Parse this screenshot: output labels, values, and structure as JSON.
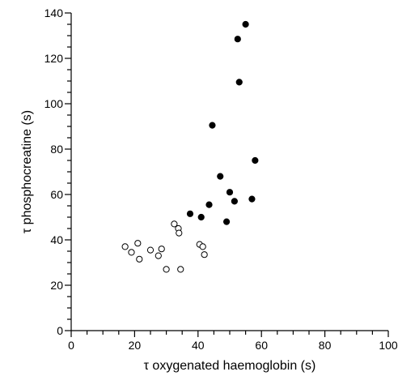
{
  "chart_data": {
    "type": "scatter",
    "xlabel": "τ oxygenated haemoglobin (s)",
    "ylabel": "τ phosphocreatine (s)",
    "xlim": [
      0,
      100
    ],
    "ylim": [
      0,
      140
    ],
    "x_major_ticks": [
      0,
      20,
      40,
      60,
      80,
      100
    ],
    "y_major_ticks": [
      0,
      20,
      40,
      60,
      80,
      100,
      120,
      140
    ],
    "grid": false,
    "legend": "none",
    "series": [
      {
        "marker": "open-circle",
        "color": "#000000",
        "x": [
          17,
          19,
          21,
          21.5,
          25,
          27.5,
          28.5,
          30,
          32.5,
          33.8,
          34,
          34.5,
          40.5,
          41.5,
          42
        ],
        "y": [
          37,
          34.5,
          38.5,
          31.5,
          35.5,
          33,
          36,
          27,
          47,
          45,
          43,
          27,
          38,
          37,
          33.5
        ]
      },
      {
        "marker": "filled-circle",
        "color": "#000000",
        "x": [
          37.5,
          41,
          43.5,
          44.5,
          47,
          49,
          50,
          51.5,
          52.5,
          53,
          55,
          57,
          58
        ],
        "y": [
          51.5,
          50,
          55.5,
          90.5,
          68,
          48,
          61,
          57,
          128.5,
          109.5,
          135,
          58,
          75
        ]
      }
    ]
  }
}
